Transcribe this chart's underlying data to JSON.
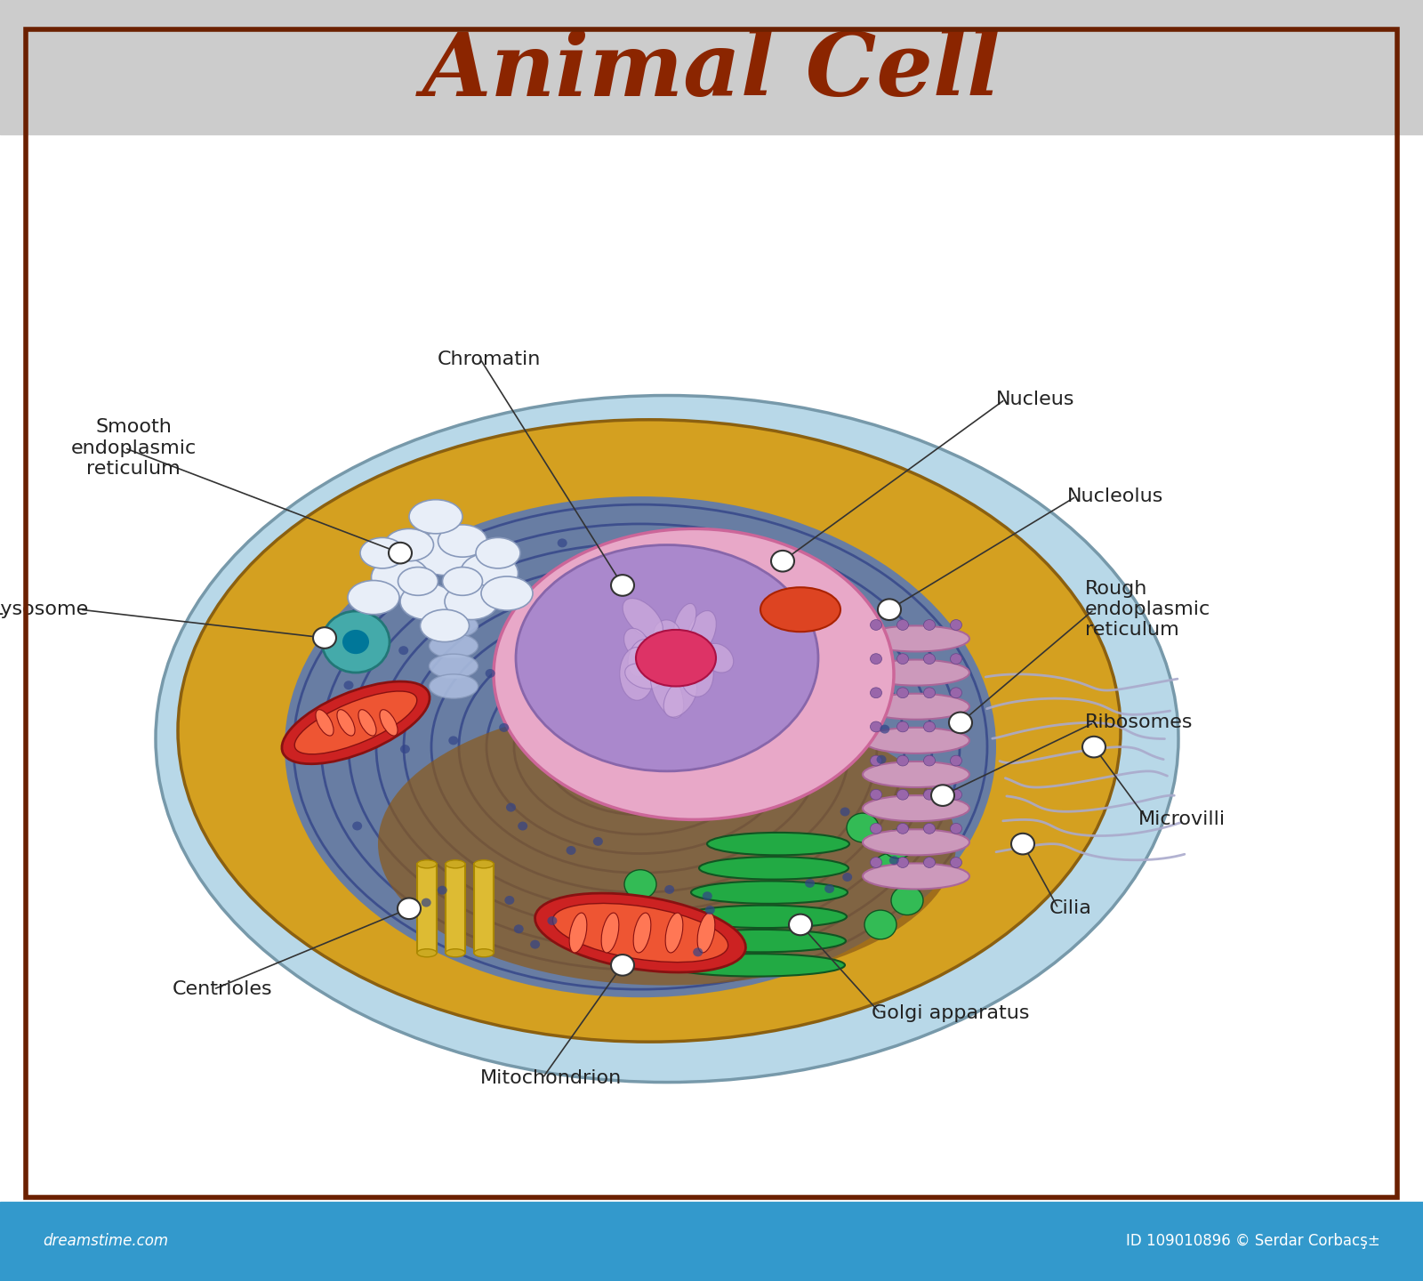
{
  "title": "Animal Cell",
  "title_color": "#8B2500",
  "title_fontsize": 72,
  "header_bg": "#CCCCCC",
  "footer_bg": "#3399CC",
  "footer_text_left": "dreamstime.com",
  "footer_text_right": "ID 109010896 © Serdar Corbacş±",
  "border_color": "#6B2000",
  "bg_color": "#FFFFFF",
  "label_color": "#222222",
  "line_color": "#333333"
}
